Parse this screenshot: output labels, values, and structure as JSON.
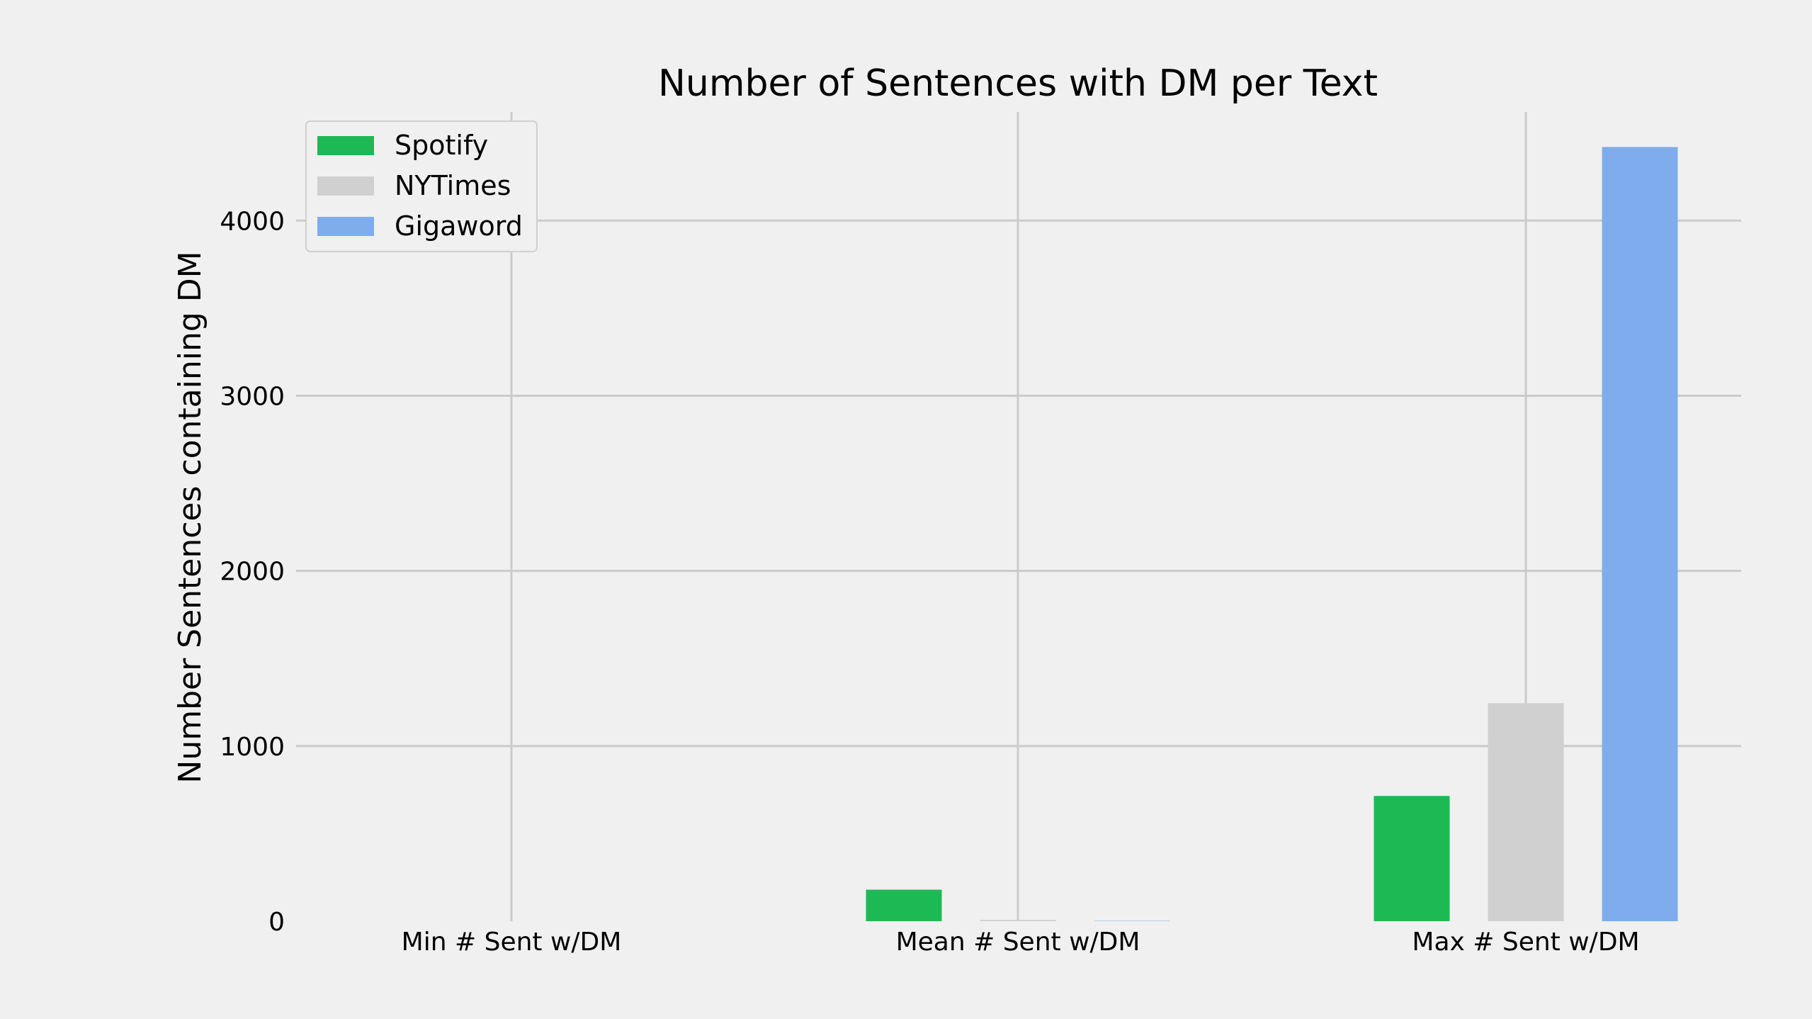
{
  "chart_data": {
    "type": "bar",
    "title": "Number of Sentences with DM per Text",
    "xlabel": "",
    "ylabel": "Number Sentences containing DM",
    "categories": [
      "Min # Sent w/DM",
      "Mean # Sent w/DM",
      "Max # Sent w/DM"
    ],
    "series": [
      {
        "name": "Spotify",
        "color": "#1db954",
        "values": [
          0,
          180,
          715
        ]
      },
      {
        "name": "NYTimes",
        "color": "#d0d0d0",
        "values": [
          0,
          8,
          1245
        ]
      },
      {
        "name": "Gigaword",
        "color": "#7facec",
        "values": [
          0,
          2,
          4420
        ]
      }
    ],
    "ylim": [
      0,
      4620
    ],
    "yticks": [
      0,
      1000,
      2000,
      3000,
      4000
    ],
    "ytick_labels": [
      "0",
      "1000",
      "2000",
      "3000",
      "4000"
    ],
    "grid": true,
    "legend_position": "top-left",
    "style": {
      "background": "#f0f0f0",
      "grid_color": "#cbcbcb"
    }
  }
}
